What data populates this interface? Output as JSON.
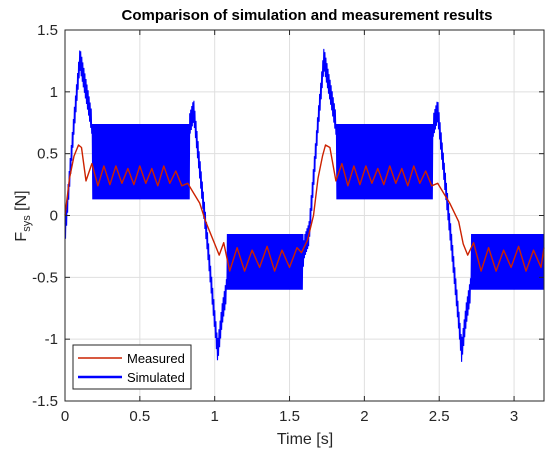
{
  "chart_data": {
    "type": "line",
    "title": "Comparison of simulation and measurement results",
    "xlabel": "Time [s]",
    "ylabel": {
      "main": "F",
      "sub": "sys",
      "unit": " [N]"
    },
    "xlim": [
      0,
      3.2
    ],
    "ylim": [
      -1.5,
      1.5
    ],
    "xticks": [
      0,
      0.5,
      1,
      1.5,
      2,
      2.5,
      3
    ],
    "xtick_labels": [
      "0",
      "0.5",
      "1",
      "1.5",
      "2",
      "2.5",
      "3"
    ],
    "yticks": [
      -1.5,
      -1,
      -0.5,
      0,
      0.5,
      1,
      1.5
    ],
    "ytick_labels": [
      "-1.5",
      "-1",
      "-0.5",
      "0",
      "0.5",
      "1",
      "1.5"
    ],
    "grid": true,
    "legend_position": "bottom-left",
    "period_s": 1.63,
    "series": [
      {
        "name": "Measured",
        "color": "#cc2200",
        "x": [
          0,
          0.03,
          0.06,
          0.09,
          0.11,
          0.14,
          0.18,
          0.22,
          0.26,
          0.3,
          0.34,
          0.38,
          0.42,
          0.46,
          0.5,
          0.54,
          0.58,
          0.62,
          0.66,
          0.7,
          0.74,
          0.78,
          0.82,
          0.86,
          0.9,
          0.94,
          1.0,
          1.03,
          1.06,
          1.1,
          1.15,
          1.2,
          1.25,
          1.3,
          1.35,
          1.4,
          1.45,
          1.5,
          1.55,
          1.58,
          1.62,
          1.66,
          1.69,
          1.72,
          1.74,
          1.77,
          1.81,
          1.85,
          1.89,
          1.93,
          1.97,
          2.01,
          2.05,
          2.09,
          2.13,
          2.17,
          2.21,
          2.25,
          2.29,
          2.33,
          2.37,
          2.41,
          2.45,
          2.49,
          2.53,
          2.57,
          2.63,
          2.66,
          2.69,
          2.73,
          2.78,
          2.83,
          2.88,
          2.93,
          2.98,
          3.03,
          3.08,
          3.13,
          3.18,
          3.2
        ],
        "y": [
          0.0,
          0.3,
          0.48,
          0.57,
          0.55,
          0.28,
          0.42,
          0.24,
          0.4,
          0.25,
          0.4,
          0.26,
          0.38,
          0.25,
          0.4,
          0.26,
          0.38,
          0.24,
          0.4,
          0.26,
          0.36,
          0.24,
          0.26,
          0.18,
          0.1,
          -0.05,
          -0.23,
          -0.32,
          -0.22,
          -0.45,
          -0.26,
          -0.45,
          -0.28,
          -0.42,
          -0.25,
          -0.45,
          -0.28,
          -0.42,
          -0.26,
          -0.3,
          -0.2,
          0.0,
          0.3,
          0.48,
          0.57,
          0.55,
          0.28,
          0.42,
          0.24,
          0.4,
          0.25,
          0.4,
          0.26,
          0.38,
          0.25,
          0.4,
          0.26,
          0.38,
          0.24,
          0.4,
          0.26,
          0.36,
          0.24,
          0.26,
          0.18,
          0.1,
          -0.05,
          -0.23,
          -0.32,
          -0.22,
          -0.45,
          -0.26,
          -0.45,
          -0.28,
          -0.42,
          -0.25,
          -0.45,
          -0.28,
          -0.42,
          -0.26
        ]
      },
      {
        "name": "Simulated",
        "color": "#0000ff",
        "x": [
          0,
          0.06,
          0.1,
          0.15,
          0.2,
          0.8,
          0.86,
          0.95,
          1.02,
          1.05,
          1.1,
          1.58,
          1.6,
          1.63,
          1.69,
          1.73,
          1.78,
          1.83,
          2.43,
          2.49,
          2.58,
          2.65,
          2.68,
          2.73,
          3.2
        ],
        "y": [
          -0.15,
          0.75,
          1.27,
          0.95,
          0.6,
          0.6,
          0.85,
          -0.2,
          -1.1,
          -0.8,
          -0.45,
          -0.45,
          -0.25,
          -0.15,
          0.75,
          1.27,
          0.95,
          0.6,
          0.6,
          0.85,
          -0.2,
          -1.1,
          -0.8,
          -0.45,
          -0.45
        ],
        "band_x": [
          [
            0.18,
            0.83
          ],
          [
            1.08,
            1.59
          ],
          [
            1.81,
            2.46
          ],
          [
            2.71,
            3.2
          ]
        ],
        "band_y": [
          [
            0.13,
            0.74
          ],
          [
            -0.6,
            -0.15
          ],
          [
            0.13,
            0.74
          ],
          [
            -0.6,
            -0.15
          ]
        ]
      }
    ]
  }
}
